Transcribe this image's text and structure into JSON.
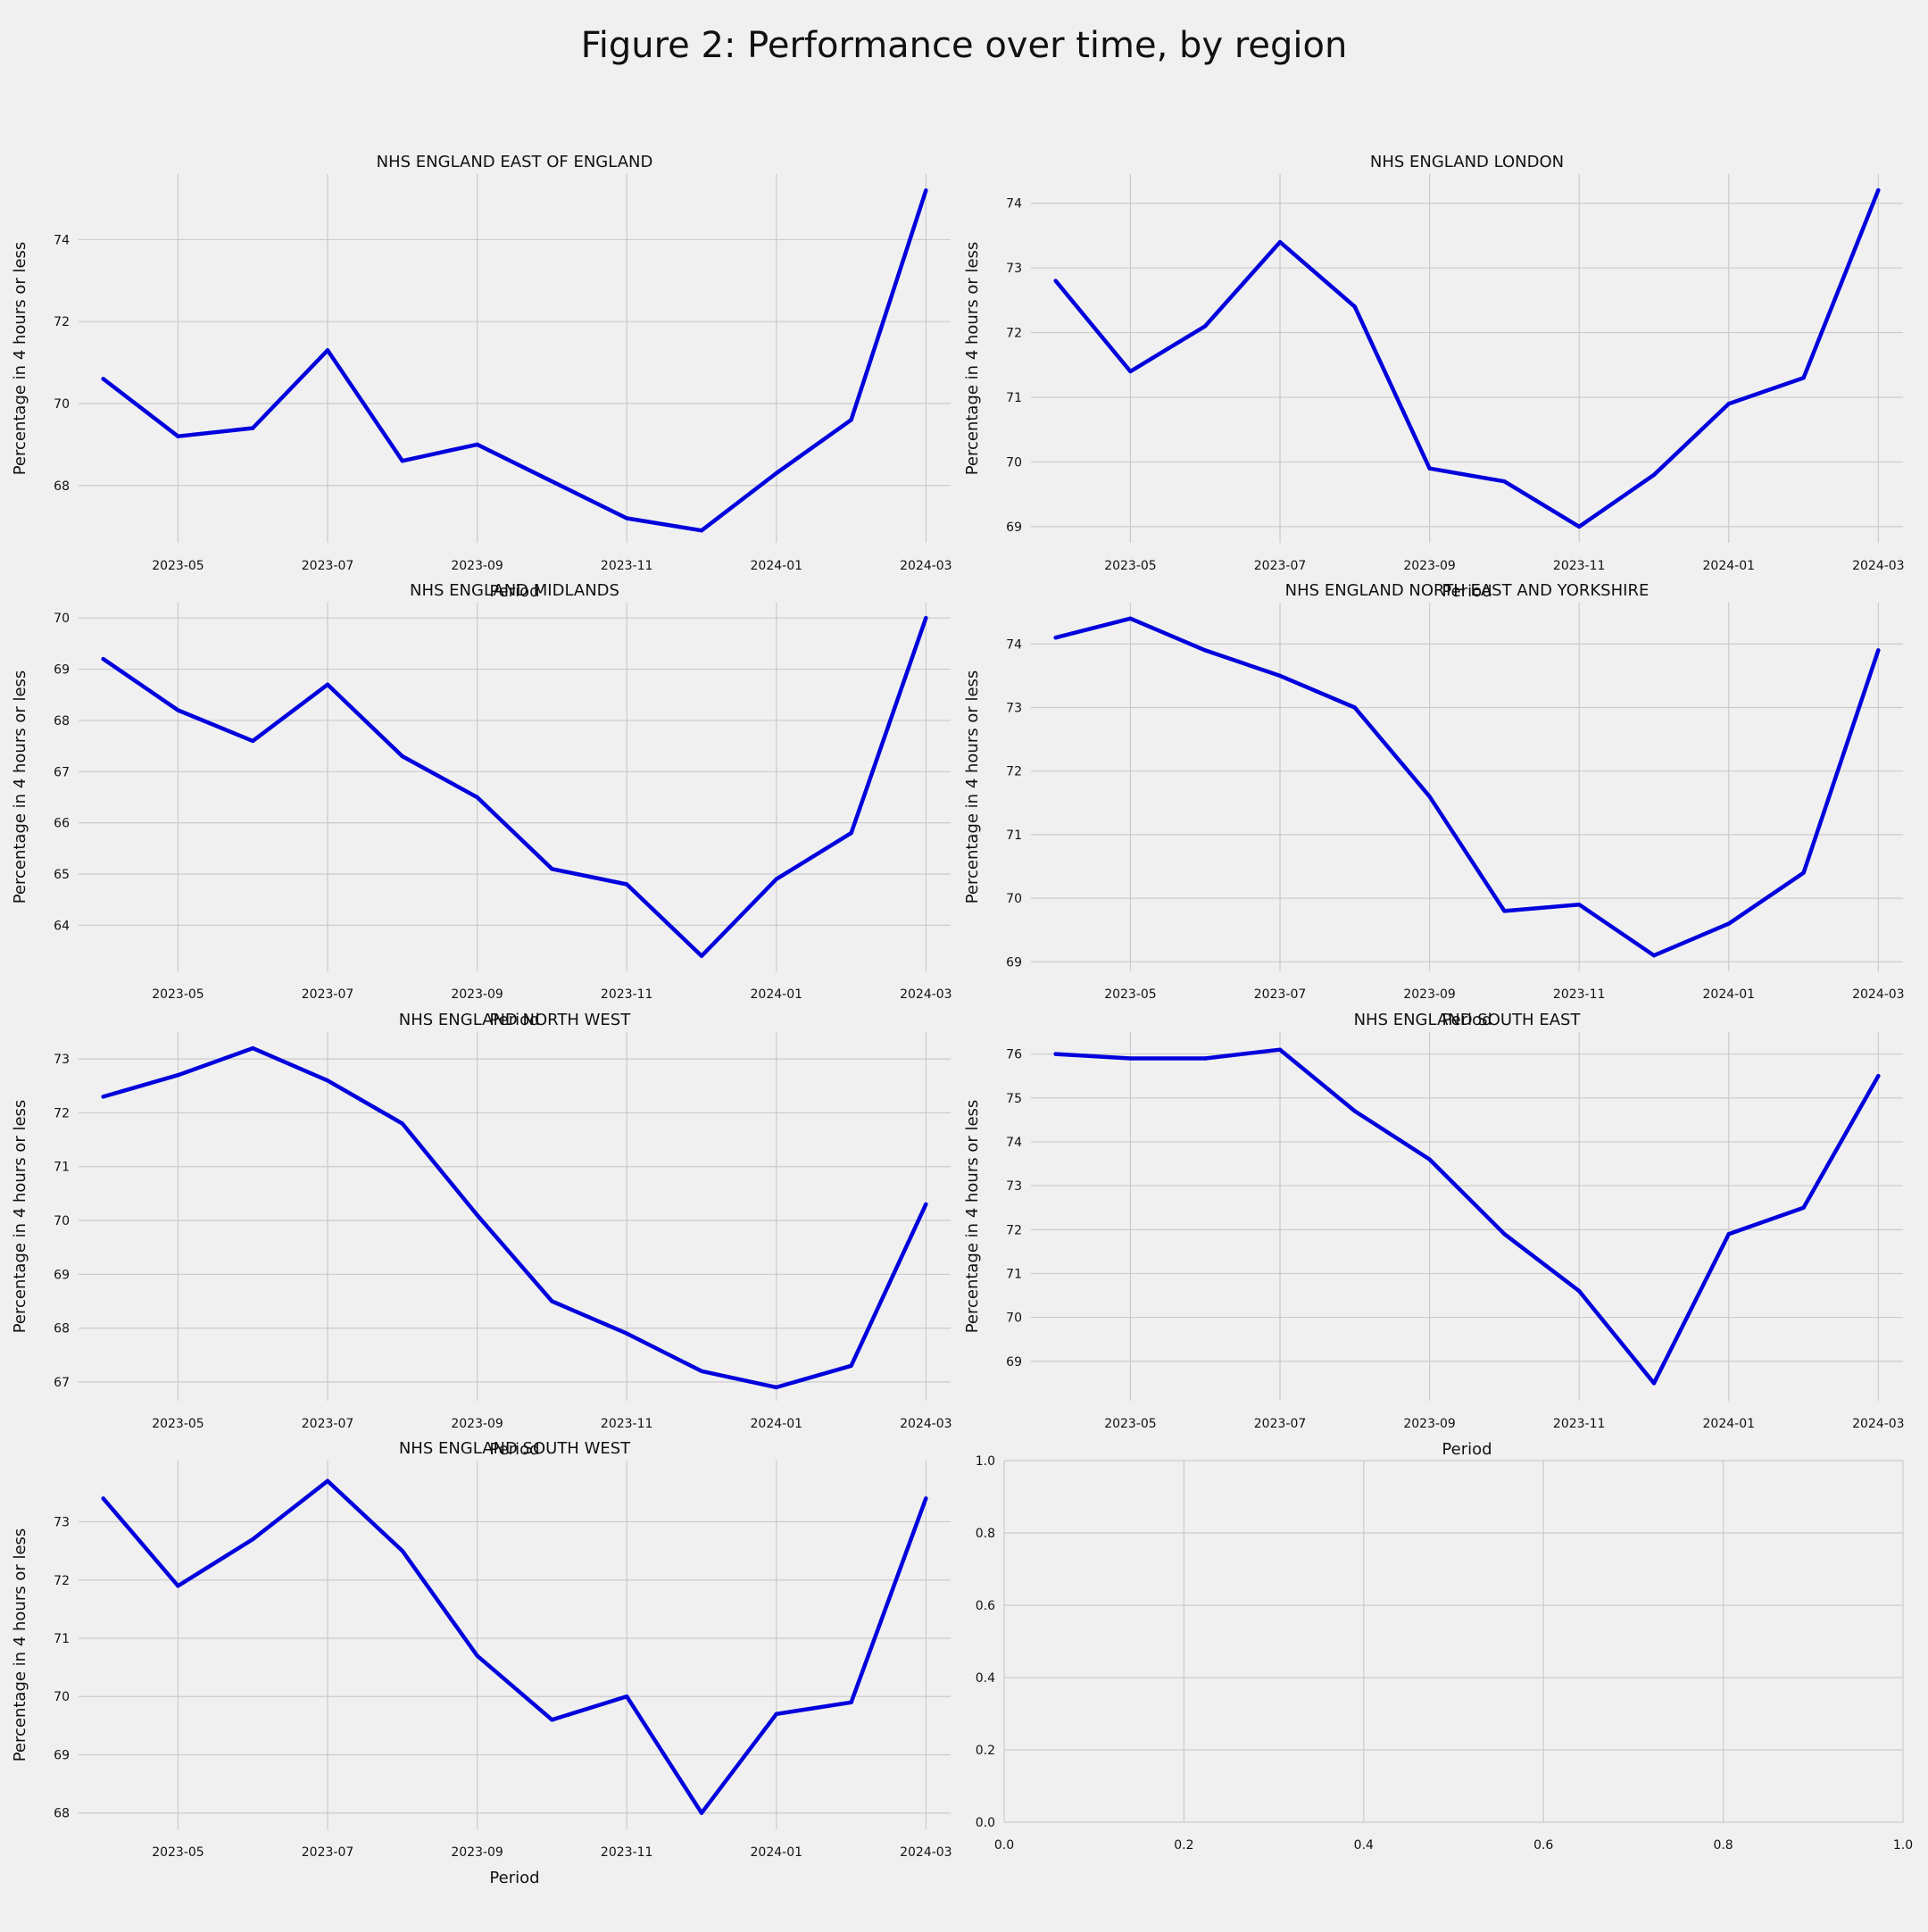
{
  "figure": {
    "title": "Figure 2: Performance over time, by region"
  },
  "colors": {
    "background": "#f0f0f0",
    "grid": "#cbcbcb",
    "line": "#0000dd"
  },
  "chart_data": [
    {
      "type": "line",
      "title": "NHS ENGLAND EAST OF ENGLAND",
      "xlabel": "Period",
      "ylabel": "Percentage in 4 hours or less",
      "x": [
        "2023-04",
        "2023-05",
        "2023-06",
        "2023-07",
        "2023-08",
        "2023-09",
        "2023-10",
        "2023-11",
        "2023-12",
        "2024-01",
        "2024-02",
        "2024-03"
      ],
      "x_ticks": [
        "2023-05",
        "2023-07",
        "2023-09",
        "2023-11",
        "2024-01",
        "2024-03"
      ],
      "y_ticks": [
        68,
        70,
        72,
        74
      ],
      "ylim": [
        66.6,
        75.6
      ],
      "series": [
        {
          "values": [
            70.6,
            69.2,
            69.4,
            71.3,
            68.6,
            69.0,
            68.1,
            67.2,
            66.9,
            68.3,
            69.6,
            75.2
          ]
        }
      ],
      "grid": true
    },
    {
      "type": "line",
      "title": "NHS ENGLAND LONDON",
      "xlabel": "Period",
      "ylabel": "Percentage in 4 hours or less",
      "x": [
        "2023-04",
        "2023-05",
        "2023-06",
        "2023-07",
        "2023-08",
        "2023-09",
        "2023-10",
        "2023-11",
        "2023-12",
        "2024-01",
        "2024-02",
        "2024-03"
      ],
      "x_ticks": [
        "2023-05",
        "2023-07",
        "2023-09",
        "2023-11",
        "2024-01",
        "2024-03"
      ],
      "y_ticks": [
        69,
        70,
        71,
        72,
        73,
        74
      ],
      "ylim": [
        68.75,
        74.45
      ],
      "series": [
        {
          "values": [
            72.8,
            71.4,
            72.1,
            73.4,
            72.4,
            69.9,
            69.7,
            69.0,
            69.8,
            70.9,
            71.3,
            74.2
          ]
        }
      ],
      "grid": true
    },
    {
      "type": "line",
      "title": "NHS ENGLAND MIDLANDS",
      "xlabel": "Period",
      "ylabel": "Percentage in 4 hours or less",
      "x": [
        "2023-04",
        "2023-05",
        "2023-06",
        "2023-07",
        "2023-08",
        "2023-09",
        "2023-10",
        "2023-11",
        "2023-12",
        "2024-01",
        "2024-02",
        "2024-03"
      ],
      "x_ticks": [
        "2023-05",
        "2023-07",
        "2023-09",
        "2023-11",
        "2024-01",
        "2024-03"
      ],
      "y_ticks": [
        64,
        65,
        66,
        67,
        68,
        69,
        70
      ],
      "ylim": [
        63.1,
        70.3
      ],
      "series": [
        {
          "values": [
            69.2,
            68.2,
            67.6,
            68.7,
            67.3,
            66.5,
            65.1,
            64.8,
            63.4,
            64.9,
            65.8,
            70.0
          ]
        }
      ],
      "grid": true
    },
    {
      "type": "line",
      "title": "NHS ENGLAND NORTH EAST AND YORKSHIRE",
      "xlabel": "Period",
      "ylabel": "Percentage in 4 hours or less",
      "x": [
        "2023-04",
        "2023-05",
        "2023-06",
        "2023-07",
        "2023-08",
        "2023-09",
        "2023-10",
        "2023-11",
        "2023-12",
        "2024-01",
        "2024-02",
        "2024-03"
      ],
      "x_ticks": [
        "2023-05",
        "2023-07",
        "2023-09",
        "2023-11",
        "2024-01",
        "2024-03"
      ],
      "y_ticks": [
        69,
        70,
        71,
        72,
        73,
        74
      ],
      "ylim": [
        68.85,
        74.65
      ],
      "series": [
        {
          "values": [
            74.1,
            74.4,
            73.9,
            73.5,
            73.0,
            71.6,
            69.8,
            69.9,
            69.1,
            69.6,
            70.4,
            73.9
          ]
        }
      ],
      "grid": true
    },
    {
      "type": "line",
      "title": "NHS ENGLAND NORTH WEST",
      "xlabel": "Period",
      "ylabel": "Percentage in 4 hours or less",
      "x": [
        "2023-04",
        "2023-05",
        "2023-06",
        "2023-07",
        "2023-08",
        "2023-09",
        "2023-10",
        "2023-11",
        "2023-12",
        "2024-01",
        "2024-02",
        "2024-03"
      ],
      "x_ticks": [
        "2023-05",
        "2023-07",
        "2023-09",
        "2023-11",
        "2024-01",
        "2024-03"
      ],
      "y_ticks": [
        67,
        68,
        69,
        70,
        71,
        72,
        73
      ],
      "ylim": [
        66.65,
        73.5
      ],
      "series": [
        {
          "values": [
            72.3,
            72.7,
            73.2,
            72.6,
            71.8,
            70.1,
            68.5,
            67.9,
            67.2,
            66.9,
            67.3,
            70.3
          ]
        }
      ],
      "grid": true
    },
    {
      "type": "line",
      "title": "NHS ENGLAND SOUTH EAST",
      "xlabel": "Period",
      "ylabel": "Percentage in 4 hours or less",
      "x": [
        "2023-04",
        "2023-05",
        "2023-06",
        "2023-07",
        "2023-08",
        "2023-09",
        "2023-10",
        "2023-11",
        "2023-12",
        "2024-01",
        "2024-02",
        "2024-03"
      ],
      "x_ticks": [
        "2023-05",
        "2023-07",
        "2023-09",
        "2023-11",
        "2024-01",
        "2024-03"
      ],
      "y_ticks": [
        69,
        70,
        71,
        72,
        73,
        74,
        75,
        76
      ],
      "ylim": [
        68.1,
        76.5
      ],
      "series": [
        {
          "values": [
            76.0,
            75.9,
            75.9,
            76.1,
            74.7,
            73.6,
            71.9,
            70.6,
            68.5,
            71.9,
            72.5,
            75.5
          ]
        }
      ],
      "grid": true
    },
    {
      "type": "line",
      "title": "NHS ENGLAND SOUTH WEST",
      "xlabel": "Period",
      "ylabel": "Percentage in 4 hours or less",
      "x": [
        "2023-04",
        "2023-05",
        "2023-06",
        "2023-07",
        "2023-08",
        "2023-09",
        "2023-10",
        "2023-11",
        "2023-12",
        "2024-01",
        "2024-02",
        "2024-03"
      ],
      "x_ticks": [
        "2023-05",
        "2023-07",
        "2023-09",
        "2023-11",
        "2024-01",
        "2024-03"
      ],
      "y_ticks": [
        68,
        69,
        70,
        71,
        72,
        73
      ],
      "ylim": [
        67.72,
        74.05
      ],
      "series": [
        {
          "values": [
            73.4,
            71.9,
            72.7,
            73.7,
            72.5,
            70.7,
            69.6,
            70.0,
            68.0,
            69.7,
            69.9,
            73.4
          ]
        }
      ],
      "grid": true
    },
    {
      "type": "empty",
      "title": "",
      "x_ticks": [
        "0.0",
        "0.2",
        "0.4",
        "0.6",
        "0.8",
        "1.0"
      ],
      "y_ticks": [
        "0.0",
        "0.2",
        "0.4",
        "0.6",
        "0.8",
        "1.0"
      ],
      "xlim": [
        0,
        1
      ],
      "ylim": [
        0,
        1
      ],
      "grid": true
    }
  ]
}
